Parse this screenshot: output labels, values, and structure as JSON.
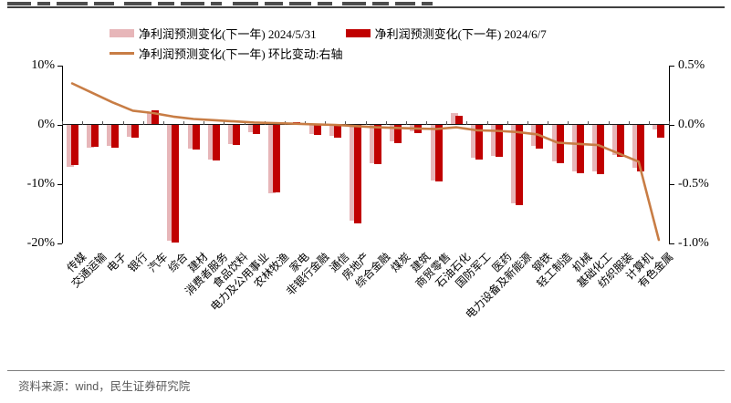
{
  "source_note": "资料来源：wind，民生证券研究院",
  "legend": {
    "series1": "净利润预测变化(下一年) 2024/5/31",
    "series2": "净利润预测变化(下一年) 2024/6/7",
    "series3": "净利润预测变化(下一年) 环比变动:右轴"
  },
  "colors": {
    "pink": "#E7B6B9",
    "red": "#C00000",
    "line": "#C87D45",
    "axis": "#000000",
    "source_text": "#595959"
  },
  "chart_data": {
    "type": "bar",
    "subtype": "grouped-overlapping-bars-with-line",
    "title": "",
    "xlabel": "",
    "ylabel_left": "",
    "ylabel_right": "",
    "grid": false,
    "legend_position": "top",
    "categories": [
      "传媒",
      "交通运输",
      "电子",
      "银行",
      "汽车",
      "综合",
      "建材",
      "消费者服务",
      "食品饮料",
      "电力及公用事业",
      "农林牧渔",
      "家电",
      "非银行金融",
      "通信",
      "房地产",
      "综合金融",
      "煤炭",
      "建筑",
      "商贸零售",
      "石油石化",
      "国防军工",
      "医药",
      "电力设备及新能源",
      "钢铁",
      "轻工制造",
      "机械",
      "基础化工",
      "纺织服装",
      "计算机",
      "有色金属"
    ],
    "series": [
      {
        "name": "净利润预测变化(下一年) 2024/5/31",
        "type": "bar",
        "axis": "left",
        "color": "#E7B6B9",
        "values": [
          -7.1,
          -3.8,
          -3.6,
          -2.0,
          2.0,
          -19.6,
          -4.0,
          -5.8,
          -3.2,
          -1.3,
          -11.6,
          0.2,
          -1.5,
          -1.9,
          -16.2,
          -6.4,
          -2.7,
          -1.1,
          -9.4,
          2.0,
          -5.5,
          -5.3,
          -13.3,
          -3.6,
          -6.2,
          -7.9,
          -7.9,
          -5.1,
          -7.2,
          -0.8
        ]
      },
      {
        "name": "净利润预测变化(下一年) 2024/6/7",
        "type": "bar",
        "axis": "left",
        "color": "#C00000",
        "values": [
          -6.8,
          -3.7,
          -3.9,
          -2.2,
          2.4,
          -19.9,
          -4.2,
          -6.0,
          -3.4,
          -1.6,
          -11.4,
          0.5,
          -1.7,
          -2.2,
          -16.6,
          -6.6,
          -3.0,
          -1.4,
          -9.6,
          1.6,
          -5.8,
          -5.4,
          -13.6,
          -4.0,
          -6.4,
          -8.2,
          -8.3,
          -5.4,
          -7.9,
          -2.1
        ]
      },
      {
        "name": "净利润预测变化(下一年) 环比变动:右轴",
        "type": "line",
        "axis": "right",
        "color": "#C87D45",
        "values": [
          0.35,
          0.27,
          0.19,
          0.12,
          0.1,
          0.07,
          0.05,
          0.04,
          0.03,
          0.02,
          0.015,
          0.01,
          0.005,
          0.0,
          -0.01,
          -0.02,
          -0.025,
          -0.03,
          -0.035,
          -0.02,
          -0.045,
          -0.05,
          -0.06,
          -0.08,
          -0.15,
          -0.16,
          -0.17,
          -0.24,
          -0.31,
          -0.97
        ]
      }
    ],
    "left_axis": {
      "tick_labels": [
        "10%",
        "0%",
        "-10%",
        "-20%"
      ],
      "tick_values": [
        10,
        0,
        -10,
        -20
      ],
      "range": [
        -20,
        10
      ]
    },
    "right_axis": {
      "tick_labels": [
        "0.5%",
        "0.0%",
        "-0.5%",
        "-1.0%"
      ],
      "tick_values": [
        0.5,
        0,
        -0.5,
        -1.0
      ],
      "range": [
        -1.0,
        0.5
      ]
    }
  }
}
